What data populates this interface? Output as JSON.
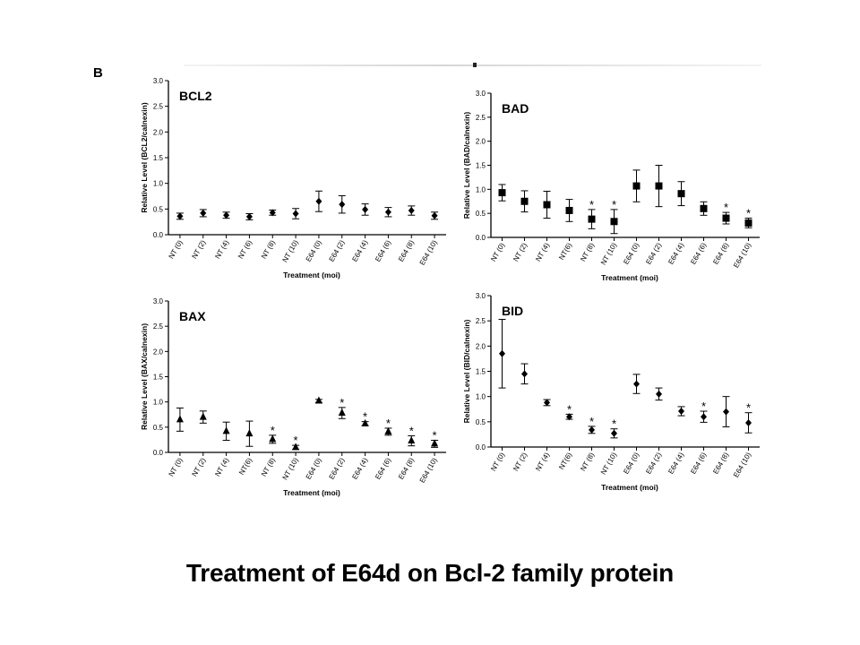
{
  "figure": {
    "panel_letter": "B",
    "caption": "Treatment of E64d on Bcl-2 family protein"
  },
  "chart_data": [
    {
      "type": "scatter",
      "title": "BCL2",
      "xlabel": "Treatment (moi)",
      "ylabel": "Relative Level (BCL2/calnexin)",
      "ylim": [
        0,
        3.0
      ],
      "yticks": [
        "0.0",
        "0.5",
        "1.0",
        "1.5",
        "2.0",
        "2.5",
        "3.0"
      ],
      "categories": [
        "NT (0)",
        "NT (2)",
        "NT (4)",
        "NT (6)",
        "NT (8)",
        "NT (10)",
        "E64 (0)",
        "E64 (2)",
        "E64 (4)",
        "E64 (6)",
        "E64 (8)",
        "E64 (10)"
      ],
      "marker": "diamond",
      "values": [
        0.36,
        0.42,
        0.38,
        0.35,
        0.43,
        0.41,
        0.65,
        0.59,
        0.49,
        0.44,
        0.47,
        0.37
      ],
      "errors": [
        0.06,
        0.07,
        0.06,
        0.06,
        0.05,
        0.1,
        0.2,
        0.17,
        0.11,
        0.09,
        0.09,
        0.07
      ],
      "significant": [
        false,
        false,
        false,
        false,
        false,
        false,
        false,
        false,
        false,
        false,
        false,
        false
      ]
    },
    {
      "type": "scatter",
      "title": "BAD",
      "xlabel": "Treatment (moi)",
      "ylabel": "Relative Level (BAD/calnexin)",
      "ylim": [
        0,
        3.0
      ],
      "yticks": [
        "0.0",
        "0.5",
        "1.0",
        "1.5",
        "2.0",
        "2.5",
        "3.0"
      ],
      "categories": [
        "NT (0)",
        "NT (2)",
        "NT (4)",
        "NT(6)",
        "NT (8)",
        "NT (10)",
        "E64 (0)",
        "E64 (2)",
        "E64 (4)",
        "E64 (6)",
        "E64 (8)",
        "E64 (10)"
      ],
      "marker": "square",
      "values": [
        0.93,
        0.75,
        0.68,
        0.56,
        0.38,
        0.33,
        1.07,
        1.07,
        0.91,
        0.6,
        0.4,
        0.3
      ],
      "errors": [
        0.17,
        0.22,
        0.28,
        0.23,
        0.2,
        0.25,
        0.33,
        0.43,
        0.25,
        0.14,
        0.12,
        0.1
      ],
      "significant": [
        false,
        false,
        false,
        false,
        true,
        true,
        false,
        false,
        false,
        false,
        true,
        true
      ]
    },
    {
      "type": "scatter",
      "title": "BAX",
      "xlabel": "Treatment (moi)",
      "ylabel": "Relative Level (BAX/calnexin)",
      "ylim": [
        0,
        3.0
      ],
      "yticks": [
        "0.0",
        "0.5",
        "1.0",
        "1.5",
        "2.0",
        "2.5",
        "3.0"
      ],
      "categories": [
        "NT (0)",
        "NT (2)",
        "NT (4)",
        "NT(6)",
        "NT (8)",
        "NT (10)",
        "E64 (0)",
        "E64 (2)",
        "E64 (4)",
        "E64 (6)",
        "E64 (8)",
        "E64 (10)"
      ],
      "marker": "triangle",
      "values": [
        0.65,
        0.7,
        0.42,
        0.37,
        0.26,
        0.1,
        1.02,
        0.78,
        0.57,
        0.41,
        0.23,
        0.17
      ],
      "errors": [
        0.23,
        0.12,
        0.18,
        0.25,
        0.08,
        0.04,
        0.03,
        0.11,
        0.04,
        0.07,
        0.1,
        0.07
      ],
      "significant": [
        false,
        false,
        false,
        false,
        true,
        true,
        false,
        true,
        true,
        true,
        true,
        true
      ]
    },
    {
      "type": "scatter",
      "title": "BID",
      "xlabel": "Treatment (moi)",
      "ylabel": "Relative Level (BID/calnexin)",
      "ylim": [
        0,
        3.0
      ],
      "yticks": [
        "0.0",
        "0.5",
        "1.0",
        "1.5",
        "2.0",
        "2.5",
        "3.0"
      ],
      "categories": [
        "NT (0)",
        "NT (2)",
        "NT (4)",
        "NT(6)",
        "NT (8)",
        "NT (10)",
        "E64 (0)",
        "E64 (2)",
        "E64 (4)",
        "E64 (6)",
        "E64 (8)",
        "E64 (10)"
      ],
      "marker": "diamond",
      "values": [
        1.85,
        1.45,
        0.88,
        0.6,
        0.34,
        0.27,
        1.25,
        1.05,
        0.71,
        0.6,
        0.7,
        0.48
      ],
      "errors": [
        0.68,
        0.2,
        0.06,
        0.05,
        0.07,
        0.09,
        0.19,
        0.12,
        0.09,
        0.11,
        0.3,
        0.2
      ],
      "significant": [
        false,
        false,
        false,
        true,
        true,
        true,
        false,
        false,
        false,
        true,
        false,
        true
      ]
    }
  ]
}
